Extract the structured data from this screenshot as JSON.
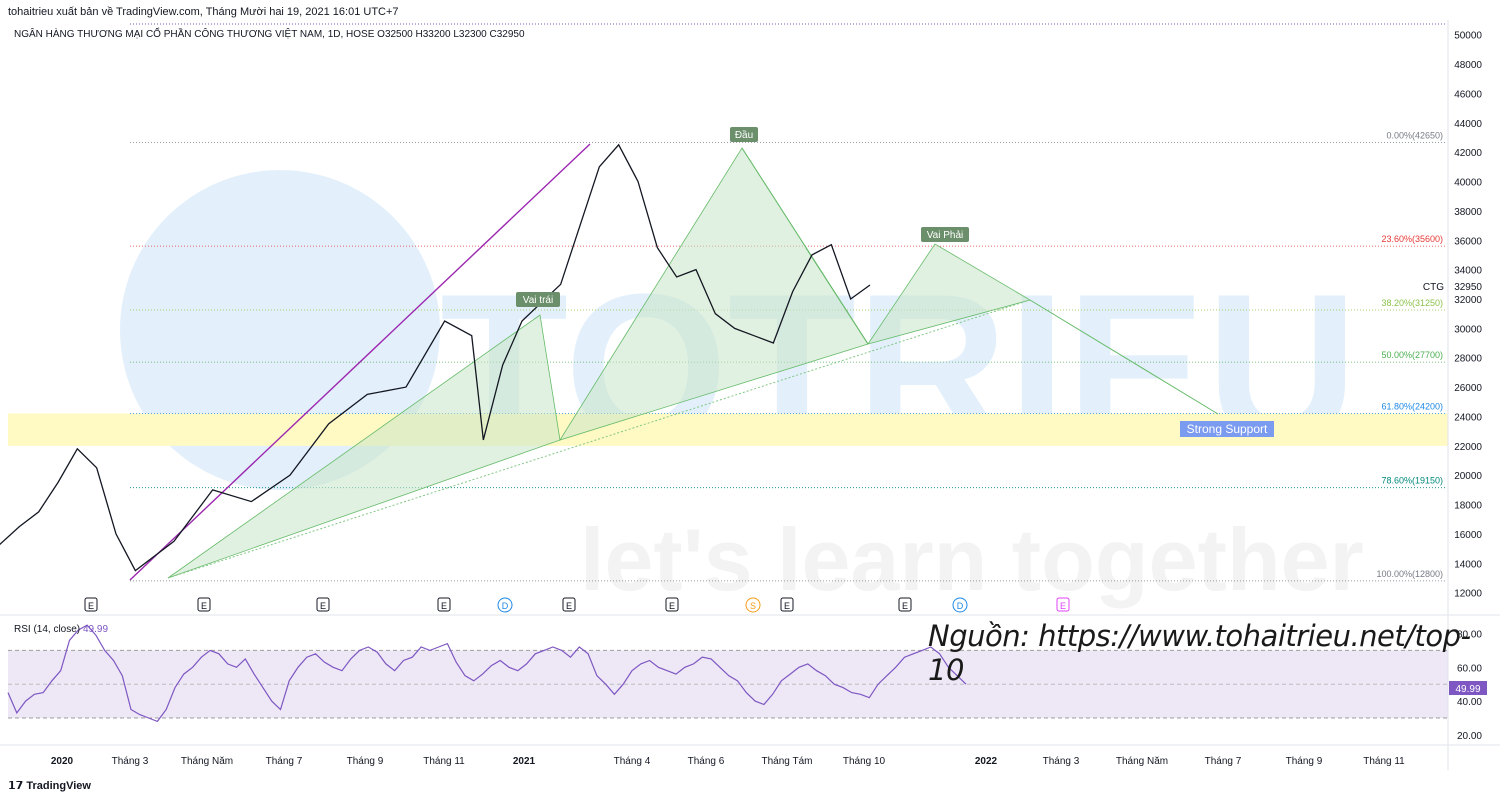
{
  "header": {
    "publish_line": "tohaitrieu xuất bản về TradingView.com, Tháng Mười hai 19, 2021 16:01 UTC+7",
    "symbol_line": "NGÂN HÀNG THƯƠNG MẠI CỔ PHẦN CÔNG THƯƠNG VIỆT NAM, 1D, HOSE  O32500  H33200  L32300  C32950"
  },
  "watermark": {
    "top": "TOTRIEU",
    "bottom": "let's learn together"
  },
  "source_note": "Nguồn: https://www.tohaitrieu.net/top-10",
  "footer": {
    "logo": "TradingView"
  },
  "colors": {
    "up": "#26a69a",
    "down": "#131722",
    "pattern_fill": "#c8e6c9",
    "support_band": "#fff9c4",
    "rsi_line": "#7e57c2",
    "rsi_band": "#ede7f6",
    "fan_line": "#9c27b0"
  },
  "chart_data": [
    {
      "type": "line",
      "title": "NGÂN HÀNG THƯƠNG MẠI CỔ PHẦN CÔNG THƯƠNG VIỆT NAM, 1D, HOSE",
      "ticker": "CTG",
      "last_price": "32950",
      "ohlc": {
        "open": 32500,
        "high": 33200,
        "low": 32300,
        "close": 32950
      },
      "xlabels": [
        "2020",
        "Tháng 3",
        "Tháng Năm",
        "Tháng 7",
        "Tháng 9",
        "Tháng 11",
        "2021",
        "Tháng 4",
        "Tháng 6",
        "Tháng Tám",
        "Tháng 10",
        "2022",
        "Tháng 3",
        "Tháng Năm",
        "Tháng 7",
        "Tháng 9",
        "Tháng 11"
      ],
      "ylim": [
        11500,
        51000
      ],
      "yticks": [
        "12000",
        "14000",
        "16000",
        "18000",
        "20000",
        "22000",
        "24000",
        "26000",
        "28000",
        "30000",
        "32000",
        "34000",
        "36000",
        "38000",
        "40000",
        "42000",
        "44000",
        "46000",
        "48000",
        "50000"
      ],
      "price_path_months": [
        0,
        0.5,
        1,
        1.5,
        2,
        2.5,
        3,
        3.5,
        4,
        5,
        6,
        7,
        8,
        9,
        10,
        11,
        12,
        12.7,
        13,
        13.5,
        14,
        15,
        16,
        16.5,
        17,
        17.5,
        18,
        18.5,
        19,
        19.5,
        20,
        20.5,
        21,
        21.5,
        22,
        22.5,
        23
      ],
      "price_path_values": [
        16000,
        15300,
        16500,
        17500,
        19500,
        21800,
        20500,
        16000,
        13500,
        15500,
        19000,
        18200,
        20000,
        23500,
        25500,
        26000,
        30500,
        29500,
        22400,
        27500,
        30500,
        33000,
        41000,
        42500,
        40000,
        35500,
        33500,
        34000,
        31000,
        30000,
        29500,
        29000,
        32500,
        35000,
        35700,
        32000,
        32950
      ],
      "fibonacci": [
        {
          "label": "0.00%(42650)",
          "value": 42650,
          "color": "#787b86"
        },
        {
          "label": "23.60%(35600)",
          "value": 35600,
          "color": "#e53935"
        },
        {
          "label": "38.20%(31250)",
          "value": 31250,
          "color": "#8bc34a"
        },
        {
          "label": "50.00%(27700)",
          "value": 27700,
          "color": "#4caf50"
        },
        {
          "label": "61.80%(24200)",
          "value": 24200,
          "color": "#1e88e5"
        },
        {
          "label": "78.60%(19150)",
          "value": 19150,
          "color": "#00897b"
        },
        {
          "label": "100.00%(12800)",
          "value": 12800,
          "color": "#787b86"
        }
      ],
      "support_zone": {
        "label": "Strong Support",
        "range": [
          22000,
          24200
        ]
      },
      "pattern_labels": [
        "Vai trái",
        "Đầu",
        "Vai Phải"
      ],
      "event_markers": [
        "E",
        "E",
        "E",
        "E",
        "D",
        "E",
        "E",
        "S",
        "E",
        "E",
        "D",
        "E"
      ]
    },
    {
      "type": "line",
      "title": "RSI (14, close)",
      "last_value": "49.99",
      "ylim": [
        14,
        88
      ],
      "yticks": [
        "20.00",
        "40.00",
        "60.00",
        "80.00"
      ],
      "band": [
        30,
        70
      ],
      "midline": 50,
      "values": [
        45,
        33,
        40,
        44,
        45,
        52,
        58,
        76,
        82,
        85,
        79,
        70,
        64,
        55,
        35,
        32,
        30,
        28,
        35,
        48,
        56,
        60,
        66,
        70,
        68,
        62,
        60,
        65,
        56,
        48,
        40,
        35,
        52,
        60,
        66,
        68,
        63,
        60,
        58,
        65,
        70,
        72,
        69,
        62,
        58,
        64,
        66,
        72,
        70,
        72,
        74,
        63,
        55,
        52,
        56,
        61,
        64,
        60,
        58,
        62,
        68,
        70,
        72,
        70,
        66,
        72,
        68,
        55,
        50,
        44,
        50,
        58,
        62,
        64,
        60,
        58,
        56,
        60,
        62,
        66,
        65,
        60,
        55,
        52,
        45,
        40,
        38,
        44,
        52,
        56,
        60,
        62,
        58,
        55,
        50,
        48,
        45,
        44,
        42,
        50,
        55,
        60,
        66,
        68,
        70,
        72,
        68,
        60,
        55,
        50
      ]
    }
  ]
}
